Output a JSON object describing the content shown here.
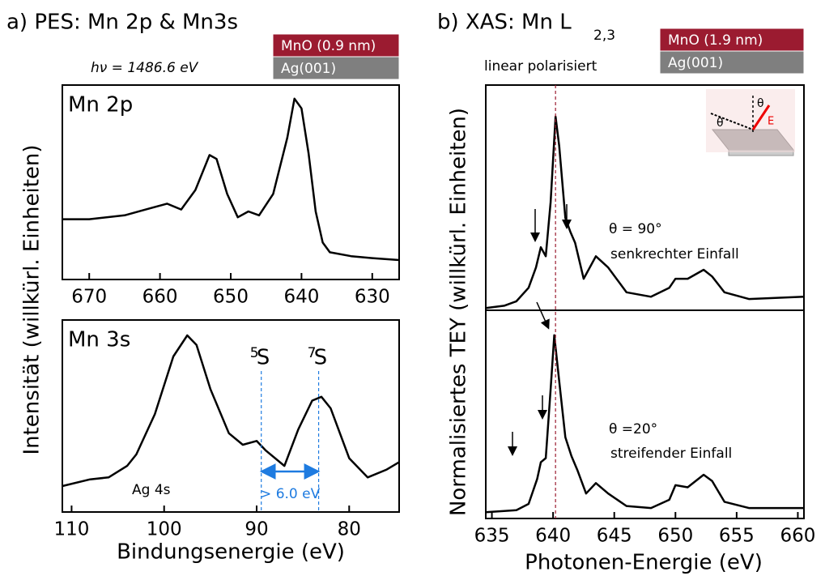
{
  "chart_data": [
    {
      "type": "line",
      "title": "a) PES: Mn 2p & Mn3s",
      "ylabel": "Intensität (willkürl. Einheiten)",
      "panel_label": "Mn 2p",
      "photon_energy": "hν = 1486.6 eV",
      "sample": [
        {
          "label": "MnO (0.9 nm)",
          "color": "#9b1b30"
        },
        {
          "label": "Ag(001)",
          "color": "#7f7f7f"
        }
      ],
      "color": "#000000",
      "xlim": [
        673.8,
        626.2
      ],
      "xticks": [
        670,
        660,
        650,
        640,
        630
      ],
      "ylim": [
        0,
        1
      ],
      "x": [
        673.8,
        670,
        665,
        662,
        659,
        657,
        655,
        653,
        652,
        650.5,
        649,
        647.5,
        646,
        644,
        642,
        641,
        640,
        639,
        638,
        637,
        636,
        633,
        630,
        626.2
      ],
      "values": [
        0.31,
        0.31,
        0.33,
        0.36,
        0.39,
        0.36,
        0.46,
        0.64,
        0.62,
        0.44,
        0.32,
        0.35,
        0.33,
        0.44,
        0.73,
        0.93,
        0.88,
        0.65,
        0.35,
        0.19,
        0.14,
        0.12,
        0.11,
        0.1
      ]
    },
    {
      "type": "line",
      "panel_label": "Mn 3s",
      "xlabel": "Bindungsenergie (eV)",
      "substrate_label": "Ag 4s",
      "peaks": [
        {
          "label": "S",
          "sup": "5",
          "x": 89.5
        },
        {
          "label": "S",
          "sup": "7",
          "x": 83.3
        }
      ],
      "splitting_label": "> 6.0 eV",
      "color": "#000000",
      "xlim": [
        111,
        74.6
      ],
      "xticks": [
        110,
        100,
        90,
        80
      ],
      "ylim": [
        0,
        1
      ],
      "x": [
        111,
        108,
        106,
        104,
        103,
        101,
        99,
        97.5,
        96.5,
        95,
        93,
        91.5,
        90,
        89,
        87,
        85.5,
        84,
        83,
        82,
        80,
        78,
        76,
        74.6
      ],
      "values": [
        0.135,
        0.17,
        0.18,
        0.24,
        0.3,
        0.51,
        0.81,
        0.92,
        0.87,
        0.64,
        0.41,
        0.35,
        0.37,
        0.32,
        0.24,
        0.43,
        0.58,
        0.6,
        0.54,
        0.28,
        0.18,
        0.22,
        0.26
      ]
    },
    {
      "type": "line",
      "title": "b)  XAS: Mn L",
      "title_sub": "2,3",
      "subtitle": "linear polarisiert",
      "ylabel": "Normalisiertes TEY (willkürl. Einheiten)",
      "sample": [
        {
          "label": "MnO (1.9 nm)",
          "color": "#9b1b30"
        },
        {
          "label": "Ag(001)",
          "color": "#7f7f7f"
        }
      ],
      "angle": "θ = 90°",
      "geometry": "senkrechter Einfall",
      "marker_x": 640.2,
      "marker_color": "#9b1b30",
      "color": "#000000",
      "xlim": [
        634.5,
        660.5
      ],
      "ylim": [
        0,
        1
      ],
      "x": [
        634.5,
        636,
        637,
        638,
        638.6,
        639,
        639.4,
        639.8,
        640.2,
        640.5,
        641,
        641.4,
        641.8,
        642.5,
        643.5,
        644.5,
        646,
        648,
        649.5,
        650,
        651,
        652.3,
        653,
        654,
        656,
        660.5
      ],
      "values": [
        0.01,
        0.02,
        0.04,
        0.1,
        0.19,
        0.28,
        0.24,
        0.48,
        0.86,
        0.73,
        0.41,
        0.35,
        0.3,
        0.14,
        0.24,
        0.19,
        0.08,
        0.06,
        0.1,
        0.14,
        0.14,
        0.18,
        0.15,
        0.08,
        0.05,
        0.06
      ]
    },
    {
      "type": "line",
      "xlabel": "Photonen-Energie (eV)",
      "angle": "θ =20°",
      "geometry": "streifender Einfall",
      "color": "#000000",
      "xlim": [
        634.5,
        660.5
      ],
      "xticks": [
        635,
        640,
        645,
        650,
        655,
        660
      ],
      "ylim": [
        0,
        1
      ],
      "x": [
        634.5,
        637,
        638,
        638.7,
        639,
        639.4,
        639.8,
        640.1,
        640.5,
        641,
        641.5,
        642,
        642.7,
        643.5,
        644.5,
        646,
        648,
        649.5,
        650,
        651,
        652.3,
        653,
        654,
        656,
        660.5
      ],
      "values": [
        0.03,
        0.04,
        0.07,
        0.19,
        0.27,
        0.29,
        0.62,
        0.88,
        0.66,
        0.39,
        0.3,
        0.23,
        0.12,
        0.17,
        0.12,
        0.06,
        0.05,
        0.09,
        0.16,
        0.15,
        0.21,
        0.18,
        0.08,
        0.05,
        0.05
      ]
    }
  ]
}
